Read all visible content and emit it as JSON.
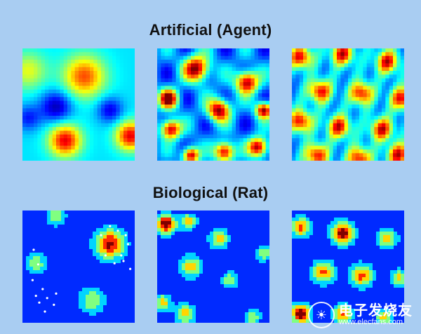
{
  "headings": {
    "artificial": "Artificial (Agent)",
    "biological": "Biological (Rat)"
  },
  "watermark": {
    "cn": "电子发烧友",
    "url": "www.elecfans.com"
  },
  "colors": {
    "background": "#a9cdf2",
    "map_low": "#102fc0",
    "map_high": "#8b0000"
  }
}
